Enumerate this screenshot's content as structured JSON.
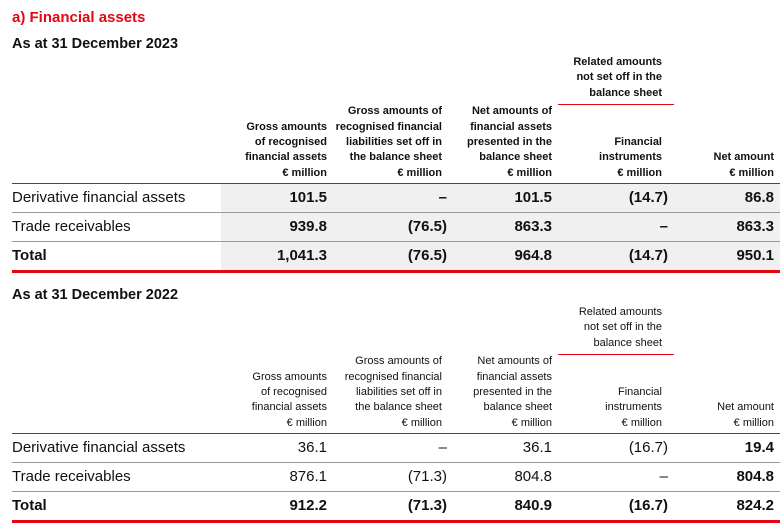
{
  "title": "a) Financial assets",
  "columns": {
    "group": "Related amounts not set off in the balance sheet",
    "c1": [
      "Gross amounts",
      "of recognised",
      "financial assets",
      "€ million"
    ],
    "c2": [
      "Gross amounts of",
      "recognised financial",
      "liabilities set off in",
      "the balance sheet",
      "€ million"
    ],
    "c3": [
      "Net amounts of",
      "financial assets",
      "presented in the",
      "balance sheet",
      "€ million"
    ],
    "c4": [
      "Financial",
      "instruments",
      "€ million"
    ],
    "c5": [
      "Net amount",
      "€ million"
    ]
  },
  "sections": [
    {
      "heading": "As at 31 December 2023",
      "rows": [
        {
          "label": "Derivative financial assets",
          "values": [
            "101.5",
            "–",
            "101.5",
            "(14.7)",
            "86.8"
          ]
        },
        {
          "label": "Trade receivables",
          "values": [
            "939.8",
            "(76.5)",
            "863.3",
            "–",
            "863.3"
          ]
        },
        {
          "label": "Total",
          "values": [
            "1,041.3",
            "(76.5)",
            "964.8",
            "(14.7)",
            "950.1"
          ]
        }
      ]
    },
    {
      "heading": "As at 31 December 2022",
      "rows": [
        {
          "label": "Derivative financial assets",
          "values": [
            "36.1",
            "–",
            "36.1",
            "(16.7)",
            "19.4"
          ]
        },
        {
          "label": "Trade receivables",
          "values": [
            "876.1",
            "(71.3)",
            "804.8",
            "–",
            "804.8"
          ]
        },
        {
          "label": "Total",
          "values": [
            "912.2",
            "(71.3)",
            "840.9",
            "(16.7)",
            "824.2"
          ]
        }
      ]
    }
  ],
  "colors": {
    "accent": "#e30613",
    "row_fill": "#f0f0f0"
  }
}
